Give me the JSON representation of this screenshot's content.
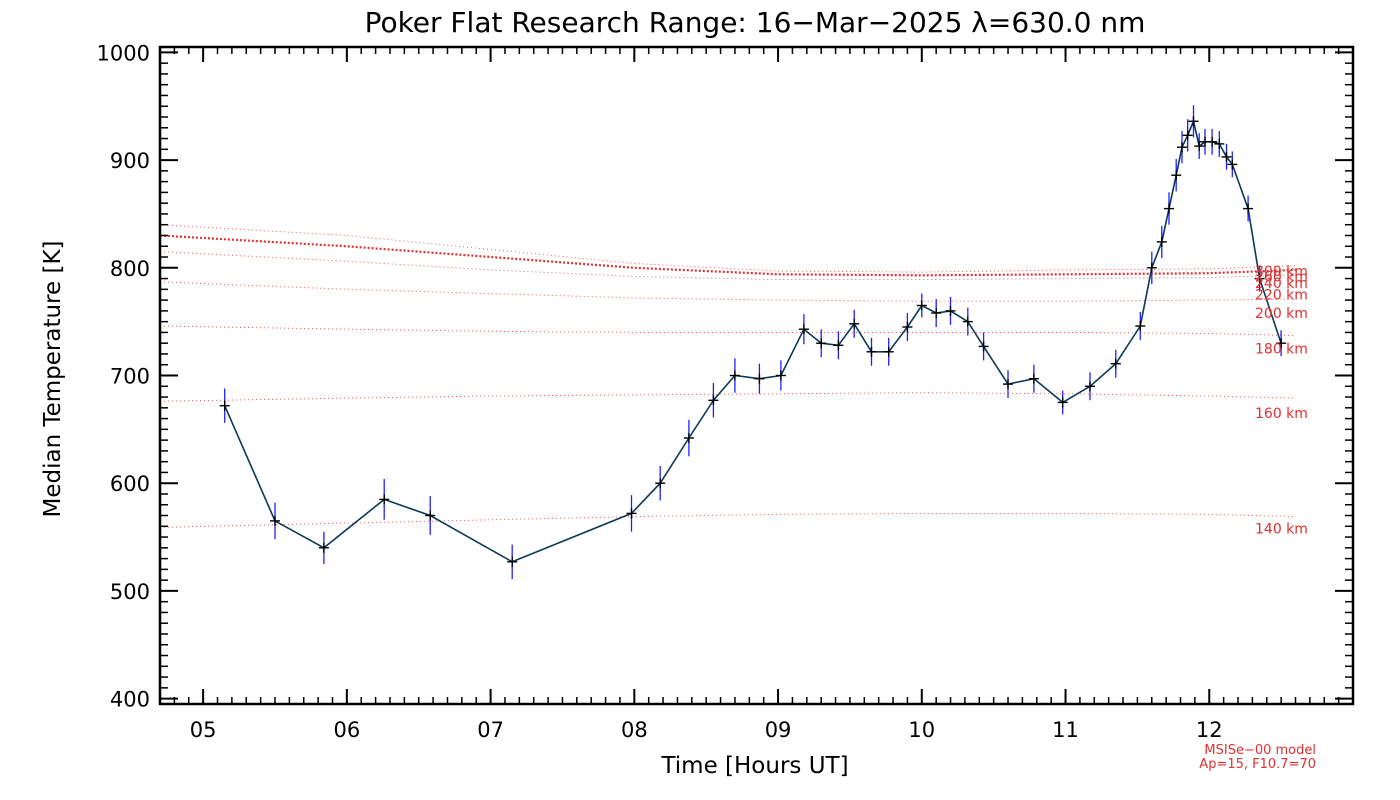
{
  "chart_data": {
    "type": "line",
    "title": "Poker Flat Research Range: 16−Mar−2025 λ=630.0 nm",
    "xlabel": "Time [Hours UT]",
    "ylabel": "Median Temperature [K]",
    "xlim": [
      4.7,
      13.0
    ],
    "ylim": [
      395,
      1005
    ],
    "xticks": [
      5,
      6,
      7,
      8,
      9,
      10,
      11,
      12
    ],
    "xtick_labels": [
      "05",
      "06",
      "07",
      "08",
      "09",
      "10",
      "11",
      "12"
    ],
    "yticks": [
      400,
      500,
      600,
      700,
      800,
      900,
      1000
    ],
    "ytick_labels": [
      "400",
      "500",
      "600",
      "700",
      "800",
      "900",
      "1000"
    ],
    "series": [
      {
        "name": "Median Temperature",
        "color": "#0a3a5a",
        "errorbar_color": "#2020ff",
        "x": [
          5.15,
          5.5,
          5.84,
          6.26,
          6.58,
          7.15,
          7.98,
          8.18,
          8.38,
          8.55,
          8.7,
          8.87,
          9.02,
          9.18,
          9.3,
          9.42,
          9.53,
          9.65,
          9.77,
          9.9,
          10.0,
          10.1,
          10.2,
          10.32,
          10.43,
          10.6,
          10.78,
          10.98,
          11.17,
          11.35,
          11.52,
          11.6,
          11.67,
          11.72,
          11.77,
          11.81,
          11.85,
          11.89,
          11.93,
          11.97,
          12.02,
          12.07,
          12.12,
          12.16,
          12.27,
          12.35,
          12.5
        ],
        "y": [
          672,
          565,
          540,
          585,
          570,
          527,
          572,
          600,
          642,
          677,
          700,
          697,
          700,
          743,
          730,
          728,
          748,
          722,
          722,
          745,
          765,
          758,
          760,
          750,
          727,
          692,
          697,
          675,
          690,
          711,
          746,
          800,
          824,
          855,
          886,
          912,
          923,
          936,
          913,
          917,
          917,
          915,
          903,
          896,
          855,
          790,
          730
        ],
        "error": [
          16,
          17,
          15,
          19,
          18,
          16,
          17,
          16,
          17,
          16,
          16,
          14,
          14,
          14,
          13,
          13,
          13,
          13,
          13,
          13,
          11,
          13,
          13,
          13,
          13,
          13,
          13,
          11,
          13,
          13,
          13,
          15,
          15,
          15,
          15,
          15,
          15,
          15,
          12,
          12,
          12,
          12,
          12,
          12,
          12,
          12,
          12
        ]
      }
    ],
    "model_curves": [
      {
        "label": "300 km",
        "x": [
          4.7,
          6,
          7,
          8,
          9,
          10,
          11,
          12,
          12.6
        ],
        "y": [
          840,
          830,
          817,
          804,
          797,
          796,
          798,
          799,
          802
        ],
        "dotted_bold": false
      },
      {
        "label": "260 km",
        "x": [
          4.7,
          6,
          7,
          8,
          9,
          10,
          11,
          12,
          12.6
        ],
        "y": [
          830,
          820,
          810,
          800,
          794,
          793,
          794,
          795,
          798
        ],
        "dotted_bold": true
      },
      {
        "label": "240 km",
        "x": [
          4.7,
          6,
          7,
          8,
          9,
          10,
          11,
          12,
          12.6
        ],
        "y": [
          815,
          806,
          798,
          792,
          789,
          789,
          790,
          791,
          793
        ],
        "dotted_bold": false
      },
      {
        "label": "220 km",
        "x": [
          4.7,
          6,
          7,
          8,
          9,
          10,
          11,
          12,
          12.6
        ],
        "y": [
          787,
          780,
          776,
          772,
          770,
          769,
          769,
          770,
          771
        ],
        "dotted_bold": false
      },
      {
        "label": "200 km",
        "x": [
          4.7,
          6,
          7,
          8,
          9,
          10,
          11,
          12,
          12.6
        ],
        "y": [
          746,
          743,
          741,
          740,
          740,
          740,
          740,
          739,
          737
        ],
        "dotted_bold": false
      },
      {
        "label": "180 km",
        "x": [
          4.7,
          6,
          7,
          8,
          9,
          10,
          11,
          12,
          12.6
        ],
        "y": [
          676,
          679,
          681,
          682,
          683,
          684,
          683,
          681,
          679
        ],
        "dotted_bold": false
      },
      {
        "label": "160 km",
        "x": [
          4.7,
          6,
          7,
          8,
          9,
          10,
          11,
          12,
          12.6
        ],
        "y": [
          559,
          563,
          566,
          569,
          571,
          572,
          572,
          571,
          569
        ],
        "dotted_bold": false
      }
    ],
    "model_labels": [
      {
        "text": "300 km",
        "y": 797
      },
      {
        "text": "260 km",
        "y": 792
      },
      {
        "text": "240 km",
        "y": 786
      },
      {
        "text": "220 km",
        "y": 775
      },
      {
        "text": "200 km",
        "y": 758
      },
      {
        "text": "180 km",
        "y": 725
      },
      {
        "text": "160 km",
        "y": 665
      },
      {
        "text": "140 km",
        "y": 558
      }
    ],
    "model_note_line1": "MSISe−00 model",
    "model_note_line2": "Ap=15, F10.7=70",
    "model_color": "#e03030"
  }
}
